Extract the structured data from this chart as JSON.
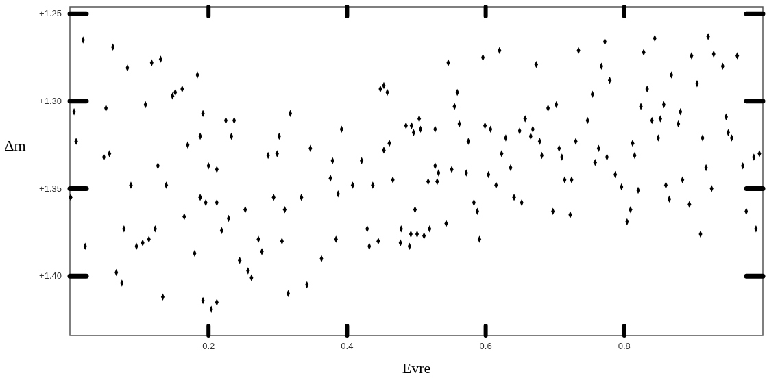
{
  "chart_data": {
    "type": "scatter",
    "xlabel": "Evre",
    "ylabel": "Δm",
    "color": "#000000",
    "marker": "diamond",
    "xlim": [
      0,
      1
    ],
    "ylim": [
      1.434,
      1.246
    ],
    "xticks": [
      0.2,
      0.4,
      0.6,
      0.8
    ],
    "yticks": [
      {
        "value": 1.25,
        "label": "+1.25"
      },
      {
        "value": 1.3,
        "label": "+1.30"
      },
      {
        "value": 1.35,
        "label": "+1.35"
      },
      {
        "value": 1.4,
        "label": "+1.40"
      }
    ],
    "x": [
      0.019,
      0.062,
      0.083,
      0.118,
      0.131,
      0.184,
      0.148,
      0.152,
      0.162,
      0.006,
      0.052,
      0.109,
      0.192,
      0.225,
      0.237,
      0.009,
      0.188,
      0.17,
      0.233,
      0.049,
      0.057,
      0.127,
      0.2,
      0.212,
      0.088,
      0.139,
      0.001,
      0.188,
      0.196,
      0.212,
      0.165,
      0.229,
      0.078,
      0.123,
      0.219,
      0.022,
      0.096,
      0.105,
      0.114,
      0.18,
      0.245,
      0.067,
      0.075,
      0.134,
      0.192,
      0.212,
      0.204,
      0.318,
      0.302,
      0.392,
      0.448,
      0.453,
      0.458,
      0.485,
      0.286,
      0.299,
      0.347,
      0.379,
      0.376,
      0.421,
      0.461,
      0.453,
      0.408,
      0.437,
      0.466,
      0.387,
      0.294,
      0.334,
      0.253,
      0.31,
      0.272,
      0.277,
      0.306,
      0.384,
      0.257,
      0.262,
      0.363,
      0.342,
      0.315,
      0.429,
      0.432,
      0.445,
      0.477,
      0.478,
      0.546,
      0.596,
      0.62,
      0.673,
      0.734,
      0.559,
      0.555,
      0.69,
      0.702,
      0.493,
      0.496,
      0.504,
      0.506,
      0.527,
      0.562,
      0.575,
      0.599,
      0.607,
      0.629,
      0.657,
      0.649,
      0.668,
      0.665,
      0.678,
      0.73,
      0.623,
      0.681,
      0.706,
      0.71,
      0.527,
      0.532,
      0.551,
      0.572,
      0.604,
      0.517,
      0.53,
      0.615,
      0.636,
      0.714,
      0.724,
      0.583,
      0.588,
      0.641,
      0.652,
      0.697,
      0.722,
      0.498,
      0.492,
      0.501,
      0.511,
      0.519,
      0.543,
      0.49,
      0.591,
      0.772,
      0.844,
      0.921,
      0.767,
      0.828,
      0.897,
      0.929,
      0.942,
      0.963,
      0.779,
      0.868,
      0.833,
      0.905,
      0.754,
      0.824,
      0.857,
      0.881,
      0.747,
      0.84,
      0.852,
      0.878,
      0.947,
      0.95,
      0.955,
      0.849,
      0.913,
      0.812,
      0.763,
      0.815,
      0.775,
      0.758,
      0.918,
      0.971,
      0.987,
      0.995,
      0.787,
      0.796,
      0.82,
      0.86,
      0.884,
      0.926,
      0.865,
      0.894,
      0.809,
      0.804,
      0.91,
      0.976,
      0.99
    ],
    "values": [
      1.265,
      1.269,
      1.281,
      1.278,
      1.276,
      1.285,
      1.297,
      1.295,
      1.293,
      1.306,
      1.304,
      1.302,
      1.307,
      1.311,
      1.311,
      1.323,
      1.32,
      1.325,
      1.32,
      1.332,
      1.33,
      1.337,
      1.337,
      1.339,
      1.348,
      1.348,
      1.355,
      1.355,
      1.358,
      1.358,
      1.366,
      1.367,
      1.373,
      1.373,
      1.374,
      1.383,
      1.383,
      1.381,
      1.379,
      1.387,
      1.391,
      1.398,
      1.404,
      1.412,
      1.414,
      1.415,
      1.419,
      1.307,
      1.32,
      1.316,
      1.293,
      1.291,
      1.295,
      1.314,
      1.331,
      1.33,
      1.327,
      1.334,
      1.344,
      1.334,
      1.324,
      1.328,
      1.348,
      1.348,
      1.345,
      1.353,
      1.355,
      1.355,
      1.362,
      1.362,
      1.379,
      1.386,
      1.38,
      1.379,
      1.397,
      1.401,
      1.39,
      1.405,
      1.41,
      1.373,
      1.383,
      1.38,
      1.381,
      1.373,
      1.278,
      1.275,
      1.271,
      1.279,
      1.271,
      1.295,
      1.303,
      1.304,
      1.302,
      1.314,
      1.318,
      1.31,
      1.316,
      1.316,
      1.313,
      1.323,
      1.314,
      1.316,
      1.321,
      1.31,
      1.317,
      1.316,
      1.32,
      1.323,
      1.323,
      1.33,
      1.331,
      1.327,
      1.332,
      1.337,
      1.341,
      1.339,
      1.341,
      1.342,
      1.346,
      1.346,
      1.348,
      1.338,
      1.345,
      1.345,
      1.358,
      1.363,
      1.355,
      1.358,
      1.363,
      1.365,
      1.362,
      1.376,
      1.376,
      1.377,
      1.373,
      1.37,
      1.383,
      1.379,
      1.266,
      1.264,
      1.263,
      1.28,
      1.272,
      1.274,
      1.273,
      1.28,
      1.274,
      1.288,
      1.285,
      1.293,
      1.29,
      1.296,
      1.303,
      1.302,
      1.306,
      1.311,
      1.311,
      1.31,
      1.313,
      1.309,
      1.318,
      1.321,
      1.321,
      1.321,
      1.324,
      1.327,
      1.331,
      1.332,
      1.335,
      1.338,
      1.337,
      1.332,
      1.33,
      1.342,
      1.349,
      1.351,
      1.348,
      1.345,
      1.35,
      1.356,
      1.359,
      1.362,
      1.369,
      1.376,
      1.363,
      1.373
    ]
  }
}
